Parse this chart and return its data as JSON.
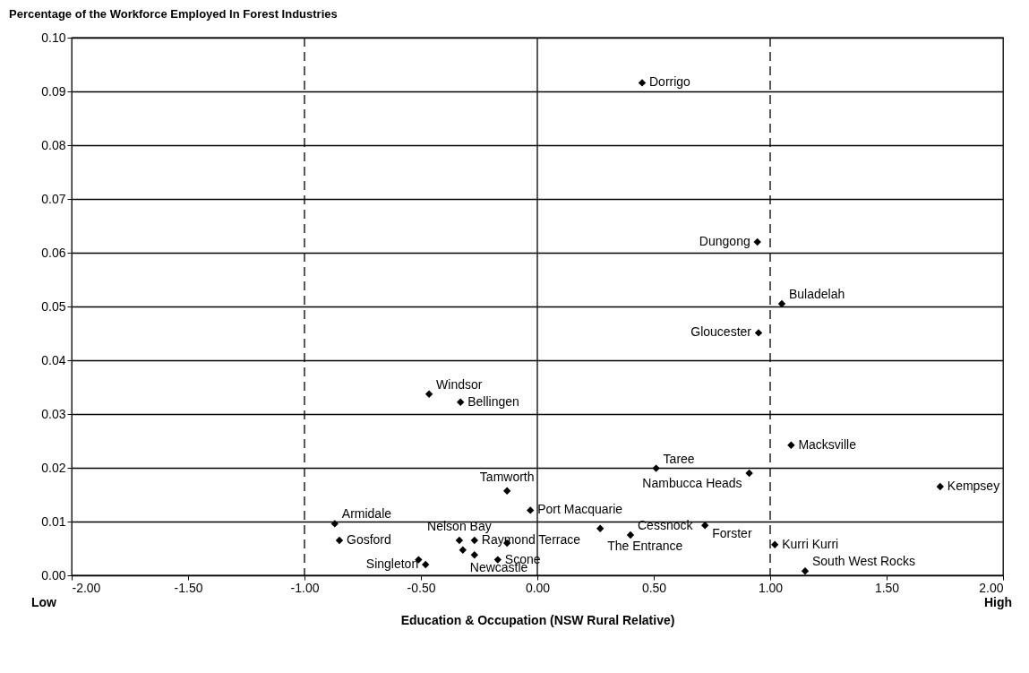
{
  "chart_data": {
    "type": "scatter",
    "title": "Percentage of the Workforce Employed In Forest Industries",
    "xlabel": "Education & Occupation (NSW Rural Relative)",
    "series": [
      {
        "color": "#000000",
        "x": [
          0.45,
          0.945,
          1.05,
          0.95,
          -0.465,
          -0.33,
          1.09,
          0.51,
          0.91,
          1.73,
          0.72,
          1.02,
          1.15,
          -0.13,
          -0.03,
          -0.87,
          -0.85,
          0.27,
          0.4,
          -0.335,
          -0.32,
          -0.27,
          -0.48,
          -0.17,
          -0.27,
          -0.13,
          -0.51
        ],
        "values": [
          0.0916,
          0.062,
          0.0505,
          0.0451,
          0.0337,
          0.0322,
          0.0242,
          0.0199,
          0.019,
          0.0165,
          0.0093,
          0.0057,
          0.0008,
          0.0157,
          0.0121,
          0.0096,
          0.0065,
          0.0087,
          0.0075,
          0.0065,
          0.0047,
          0.0065,
          0.002,
          0.0029,
          0.0038,
          0.006,
          0.0029
        ]
      }
    ],
    "annotations": [
      {
        "text": "Dorrigo",
        "x": 0.45,
        "y": 0.0916
      },
      {
        "text": "Dungong",
        "x": 0.945,
        "y": 0.062
      },
      {
        "text": "Buladelah",
        "x": 1.05,
        "y": 0.0505
      },
      {
        "text": "Gloucester",
        "x": 0.95,
        "y": 0.0451
      },
      {
        "text": "Windsor",
        "x": -0.465,
        "y": 0.0337
      },
      {
        "text": "Bellingen",
        "x": -0.33,
        "y": 0.0322
      },
      {
        "text": "Macksville",
        "x": 1.09,
        "y": 0.0242
      },
      {
        "text": "Taree",
        "x": 0.51,
        "y": 0.0199
      },
      {
        "text": "Nambucca Heads",
        "x": 0.91,
        "y": 0.019
      },
      {
        "text": "Kempsey",
        "x": 1.73,
        "y": 0.0165
      },
      {
        "text": "Forster",
        "x": 0.72,
        "y": 0.0093
      },
      {
        "text": "Kurri Kurri",
        "x": 1.02,
        "y": 0.0057
      },
      {
        "text": "South West Rocks",
        "x": 1.15,
        "y": 0.0008
      },
      {
        "text": "Tamworth",
        "x": -0.13,
        "y": 0.0157
      },
      {
        "text": "Port Macquarie",
        "x": -0.03,
        "y": 0.0121
      },
      {
        "text": "Armidale",
        "x": -0.87,
        "y": 0.0096
      },
      {
        "text": "Gosford",
        "x": -0.85,
        "y": 0.0065
      },
      {
        "text": "The Entrance",
        "x": 0.27,
        "y": 0.0087
      },
      {
        "text": "Cessnock",
        "x": 0.4,
        "y": 0.0075
      },
      {
        "text": "Nelson Bay",
        "x": -0.335,
        "y": 0.0065
      },
      {
        "text": "Newcastle",
        "x": -0.32,
        "y": 0.0047
      },
      {
        "text": "Raymond Terrace",
        "x": -0.27,
        "y": 0.0065
      },
      {
        "text": "Singleton",
        "x": -0.48,
        "y": 0.002
      },
      {
        "text": "Scone",
        "x": -0.17,
        "y": 0.0029
      },
      "Low",
      "High"
    ],
    "xlim": [
      -2,
      2
    ],
    "xticks": [
      {
        "value": -2,
        "label": "-2.00"
      },
      {
        "value": -1.5,
        "label": "-1.50"
      },
      {
        "value": -1,
        "label": "-1.00"
      },
      {
        "value": -0.5,
        "label": "-0.50"
      },
      {
        "value": 0,
        "label": "0.00"
      },
      {
        "value": 0.5,
        "label": "0.50"
      },
      {
        "value": 1,
        "label": "1.00"
      },
      {
        "value": 1.5,
        "label": "1.50"
      },
      {
        "value": 2,
        "label": "2.00"
      }
    ],
    "ylim": [
      0,
      0.1
    ],
    "yticks": [
      {
        "value": 0,
        "label": "0.00"
      },
      {
        "value": 0.01,
        "label": "0.01"
      },
      {
        "value": 0.02,
        "label": "0.02"
      },
      {
        "value": 0.03,
        "label": "0.03"
      },
      {
        "value": 0.04,
        "label": "0.04"
      },
      {
        "value": 0.05,
        "label": "0.05"
      },
      {
        "value": 0.06,
        "label": "0.06"
      },
      {
        "value": 0.07,
        "label": "0.07"
      },
      {
        "value": 0.08,
        "label": "0.08"
      },
      {
        "value": 0.09,
        "label": "0.09"
      },
      {
        "value": 0.1,
        "label": "0.10"
      }
    ],
    "grid": "y",
    "marker": "diamond",
    "ref_lines": [
      {
        "axis": "x",
        "value": -1,
        "line_style": "dashed"
      },
      {
        "axis": "x",
        "value": 0,
        "line_style": "solid"
      },
      {
        "axis": "x",
        "value": 1,
        "line_style": "dashed"
      }
    ]
  }
}
